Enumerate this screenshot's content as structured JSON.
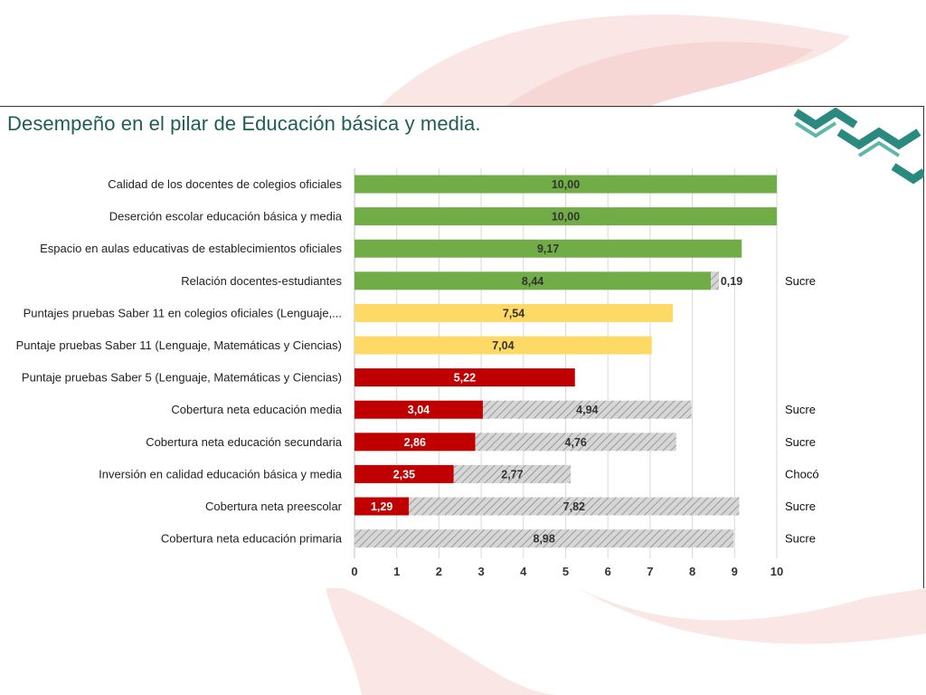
{
  "slide": {
    "title": "Desempeño en el pilar de Educación básica y media."
  },
  "colors": {
    "green": "#70ad47",
    "yellow": "#ffd966",
    "red": "#c00000",
    "gap_gray": "#c8c8c8",
    "title_teal": "#1e5e56",
    "logo_teal": "#2a8a80"
  },
  "chart_data": {
    "type": "bar",
    "orientation": "horizontal",
    "stacked": true,
    "xlim": [
      0,
      10
    ],
    "xticks": [
      "0",
      "1",
      "2",
      "3",
      "4",
      "5",
      "6",
      "7",
      "8",
      "9",
      "10"
    ],
    "grid": true,
    "legend": "none",
    "categories": [
      "Calidad de los docentes de colegios oficiales",
      "Deserción escolar educación básica y media",
      "Espacio en aulas educativas de establecimientos oficiales",
      "Relación docentes-estudiantes",
      "Puntajes pruebas Saber 11 en colegios oficiales (Lenguaje,...",
      "Puntaje pruebas Saber 11 (Lenguaje, Matemáticas y Ciencias)",
      "Puntaje pruebas Saber 5 (Lenguaje, Matemáticas y Ciencias)",
      "Cobertura neta educación media",
      "Cobertura neta educación secundaria",
      "Inversión en calidad educación básica y media",
      "Cobertura neta preescolar",
      "Cobertura neta educación primaria"
    ],
    "series": [
      {
        "values": [
          10.0,
          10.0,
          9.17,
          8.44,
          7.54,
          7.04,
          5.22,
          3.04,
          2.86,
          2.35,
          1.29,
          0
        ],
        "labels": [
          "10,00",
          "10,00",
          "9,17",
          "8,44",
          "7,54",
          "7,04",
          "5,22",
          "3,04",
          "2,86",
          "2,35",
          "1,29",
          ""
        ],
        "color_levels": [
          "green",
          "green",
          "green",
          "green",
          "yellow",
          "yellow",
          "red",
          "red",
          "red",
          "red",
          "red",
          "none"
        ]
      },
      {
        "values": [
          0,
          0,
          0,
          0.19,
          0,
          0,
          0,
          4.94,
          4.76,
          2.77,
          7.82,
          8.98
        ],
        "labels": [
          "",
          "",
          "",
          "0,19",
          "",
          "",
          "",
          "4,94",
          "4,76",
          "2,77",
          "7,82",
          "8,98"
        ],
        "pattern": "hatched-gray"
      }
    ],
    "annotations": [
      "",
      "",
      "",
      "Sucre",
      "",
      "",
      "",
      "Sucre",
      "Sucre",
      "Chocó",
      "Sucre",
      "Sucre"
    ]
  }
}
